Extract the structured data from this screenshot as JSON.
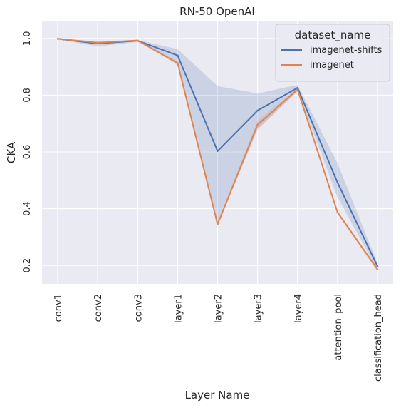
{
  "chart_data": {
    "type": "line",
    "title": "RN-50  OpenAI",
    "xlabel": "Layer Name",
    "ylabel": "CKA",
    "categories": [
      "conv1",
      "conv2",
      "conv3",
      "layer1",
      "layer2",
      "layer3",
      "layer4",
      "attention_pool",
      "classification_head"
    ],
    "ylim": [
      0.135,
      1.06
    ],
    "yticks": [
      "0.2",
      "0.4",
      "0.6",
      "0.8",
      "1.0"
    ],
    "grid": true,
    "legend": {
      "title": "dataset_name",
      "placement": "top-right"
    },
    "series": [
      {
        "name": "imagenet-shifts",
        "color": "#4c72b0",
        "values": [
          0.999,
          0.982,
          0.992,
          0.94,
          0.603,
          0.746,
          0.826,
          0.492,
          0.197
        ],
        "ci_low": [
          0.997,
          0.972,
          0.988,
          0.915,
          0.345,
          0.68,
          0.815,
          0.44,
          0.185
        ],
        "ci_high": [
          1.0,
          0.99,
          0.995,
          0.962,
          0.832,
          0.806,
          0.836,
          0.56,
          0.207
        ]
      },
      {
        "name": "imagenet",
        "color": "#dd8452",
        "values": [
          0.999,
          0.985,
          0.993,
          0.913,
          0.345,
          0.696,
          0.82,
          0.387,
          0.186
        ],
        "ci_low": [
          0.997,
          0.98,
          0.991,
          0.905,
          0.34,
          0.68,
          0.812,
          0.382,
          0.178
        ],
        "ci_high": [
          1.0,
          0.988,
          0.995,
          0.92,
          0.352,
          0.71,
          0.826,
          0.392,
          0.194
        ]
      }
    ]
  }
}
